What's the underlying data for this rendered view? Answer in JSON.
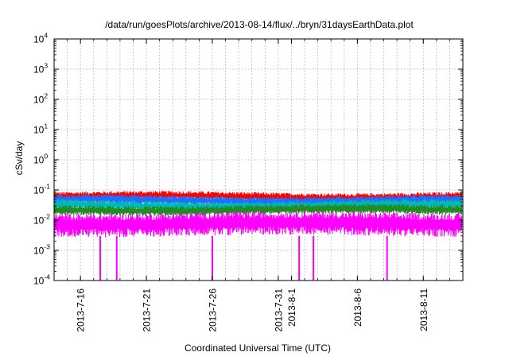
{
  "chart_data": {
    "type": "line",
    "title": "/data/run/goesPlots/archive/2013-08-14/flux/../bryn/31daysEarthData.plot",
    "xlabel": "Coordinated Universal Time (UTC)",
    "ylabel": "cSv/day",
    "yscale": "log",
    "ylim": [
      0.0001,
      10000
    ],
    "y_ticks": [
      {
        "base": "10",
        "exp": "-4",
        "value": 0.0001
      },
      {
        "base": "10",
        "exp": "-3",
        "value": 0.001
      },
      {
        "base": "10",
        "exp": "-2",
        "value": 0.01
      },
      {
        "base": "10",
        "exp": "-1",
        "value": 0.1
      },
      {
        "base": "10",
        "exp": "0",
        "value": 1
      },
      {
        "base": "10",
        "exp": "1",
        "value": 10
      },
      {
        "base": "10",
        "exp": "2",
        "value": 100
      },
      {
        "base": "10",
        "exp": "3",
        "value": 1000
      },
      {
        "base": "10",
        "exp": "4",
        "value": 10000
      }
    ],
    "xlim": [
      "2013-07-14",
      "2013-08-14"
    ],
    "x_ticks": [
      {
        "date": "2013-07-16",
        "label": "2013-7-16"
      },
      {
        "date": "2013-07-21",
        "label": "2013-7-21"
      },
      {
        "date": "2013-07-26",
        "label": "2013-7-26"
      },
      {
        "date": "2013-07-31",
        "label": "2013-7-31"
      },
      {
        "date": "2013-08-01",
        "label": "2013-8-1"
      },
      {
        "date": "2013-08-06",
        "label": "2013-8-6"
      },
      {
        "date": "2013-08-11",
        "label": "2013-8-11"
      }
    ],
    "grid": true,
    "series": [
      {
        "color": "#ff0000",
        "typical": 0.06,
        "range": [
          0.045,
          0.085
        ]
      },
      {
        "color": "#1e6fff",
        "typical": 0.045,
        "range": [
          0.03,
          0.065
        ]
      },
      {
        "color": "#00b8b8",
        "typical": 0.03,
        "range": [
          0.022,
          0.045
        ]
      },
      {
        "color": "#228b22",
        "typical": 0.022,
        "range": [
          0.015,
          0.032
        ]
      },
      {
        "color": "#ff00ff",
        "typical": 0.008,
        "range": [
          0.003,
          0.018
        ]
      }
    ],
    "dropouts": [
      {
        "date": "2013-07-17 12:00",
        "value": 0.0001
      },
      {
        "date": "2013-07-18 18:00",
        "value": 0.0001
      },
      {
        "date": "2013-07-26 00:00",
        "value": 0.0001
      },
      {
        "date": "2013-08-01 14:00",
        "value": 0.0001
      },
      {
        "date": "2013-08-02 16:00",
        "value": 0.0001
      },
      {
        "date": "2013-08-08 06:00",
        "value": 0.0001
      }
    ]
  }
}
